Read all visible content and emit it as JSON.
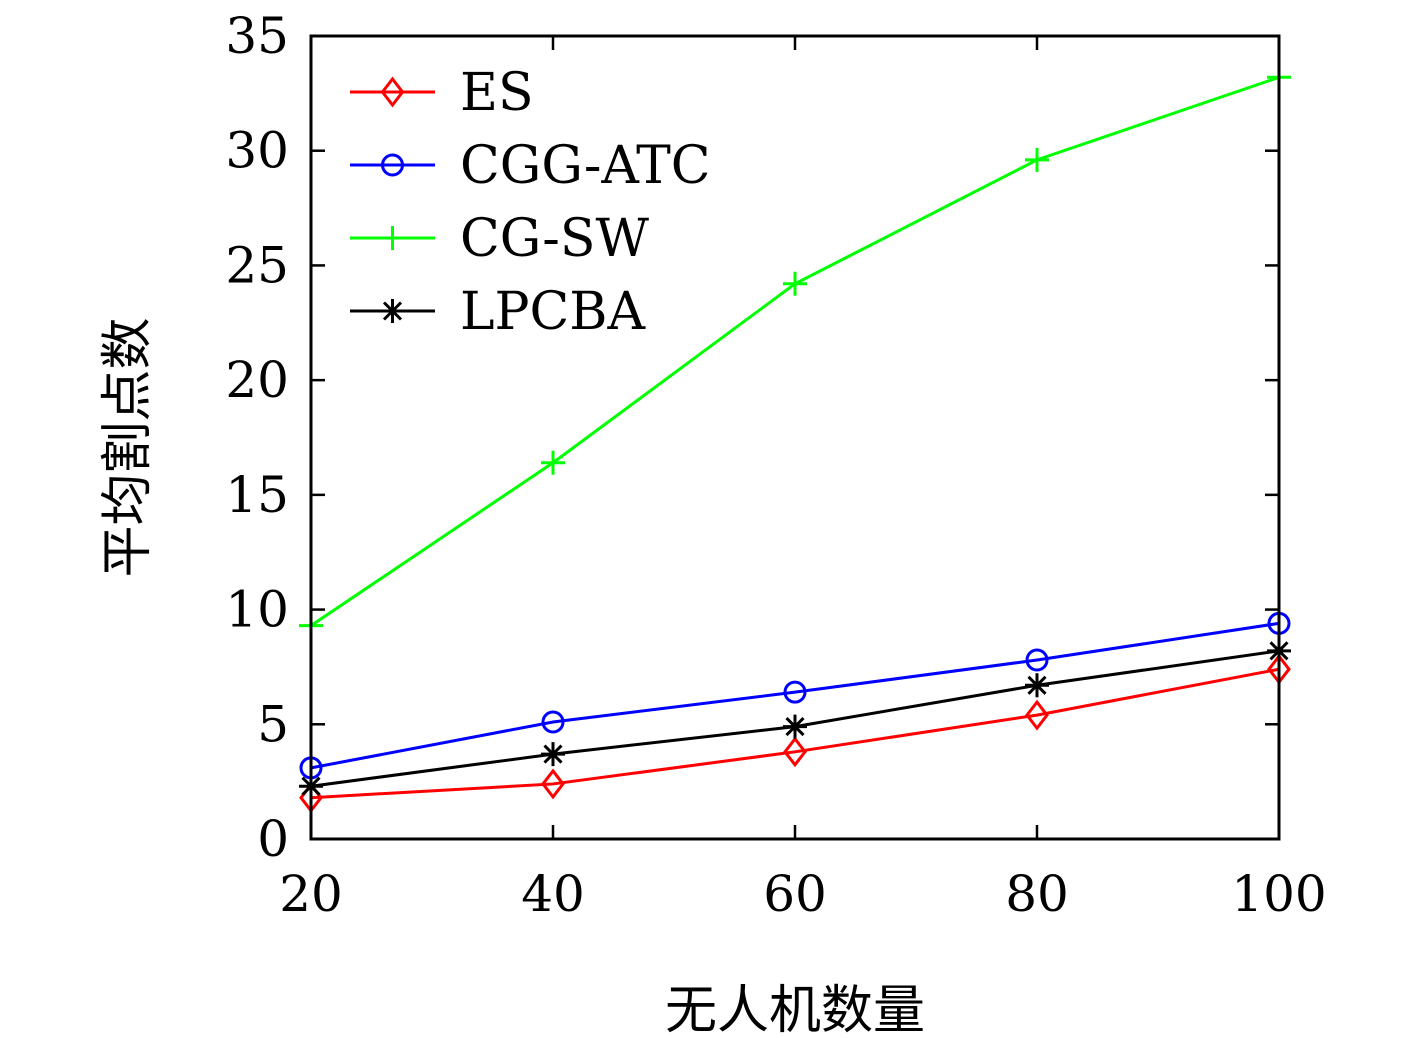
{
  "chart_data": {
    "type": "line",
    "title": "",
    "xlabel": "无人机数量",
    "ylabel": "平均割点数",
    "x": [
      20,
      40,
      60,
      80,
      100
    ],
    "xlim": [
      20,
      100
    ],
    "ylim": [
      0,
      35
    ],
    "xticks": [
      20,
      40,
      60,
      80,
      100
    ],
    "yticks": [
      0,
      5,
      10,
      15,
      20,
      25,
      30,
      35
    ],
    "grid": false,
    "legend_position": "top-left",
    "series": [
      {
        "name": "ES",
        "color": "#ff0000",
        "marker": "diamond",
        "values": [
          1.8,
          2.4,
          3.8,
          5.4,
          7.4
        ]
      },
      {
        "name": "CGG-ATC",
        "color": "#0000ff",
        "marker": "circle",
        "values": [
          3.1,
          5.1,
          6.4,
          7.8,
          9.4
        ]
      },
      {
        "name": "CG-SW",
        "color": "#00ff00",
        "marker": "plus",
        "values": [
          9.3,
          16.4,
          24.2,
          29.6,
          33.2
        ]
      },
      {
        "name": "LPCBA",
        "color": "#000000",
        "marker": "star",
        "values": [
          2.3,
          3.7,
          4.9,
          6.7,
          8.2
        ]
      }
    ]
  }
}
